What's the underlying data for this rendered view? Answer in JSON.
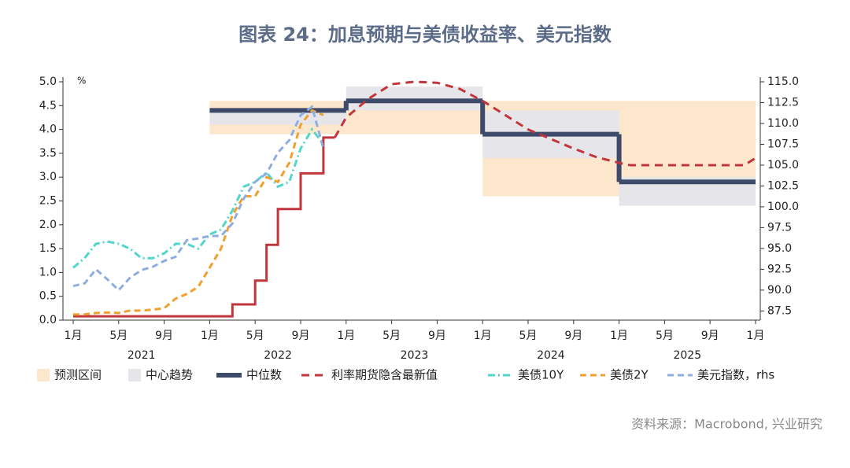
{
  "chart_data": {
    "type": "line",
    "title": "图表 24：加息预期与美债收益率、美元指数",
    "y_unit": "%",
    "source": "资料来源：Macrobond, 兴业研究",
    "ylim": [
      0,
      5
    ],
    "yticks": [
      {
        "value": 0,
        "label": "0.0"
      },
      {
        "value": 0.5,
        "label": "0.5"
      },
      {
        "value": 1,
        "label": "1.0"
      },
      {
        "value": 1.5,
        "label": "1.5"
      },
      {
        "value": 2,
        "label": "2.0"
      },
      {
        "value": 2.5,
        "label": "2.5"
      },
      {
        "value": 3,
        "label": "3.0"
      },
      {
        "value": 3.5,
        "label": "3.5"
      },
      {
        "value": 4,
        "label": "4.0"
      },
      {
        "value": 4.5,
        "label": "4.5"
      },
      {
        "value": 5,
        "label": "5.0"
      }
    ],
    "y2lim": [
      86.4,
      115
    ],
    "y2ticks": [
      87.5,
      {
        "value": 90,
        "label": "90.0"
      },
      92.5,
      {
        "value": 95,
        "label": "95.0"
      },
      97.5,
      {
        "value": 100,
        "label": "100.0"
      },
      102.5,
      {
        "value": 105,
        "label": "105.0"
      },
      107.5,
      {
        "value": 110,
        "label": "110.0"
      },
      112.5,
      {
        "value": 115,
        "label": "115.0"
      }
    ],
    "xlim": [
      "2021-01",
      "2026-01"
    ],
    "xticks": [
      {
        "value": "2021-01",
        "label": "1月"
      },
      {
        "value": "2021-05",
        "label": "5月"
      },
      {
        "value": "2021-09",
        "label": "9月"
      },
      {
        "value": "2022-01",
        "label": "1月"
      },
      {
        "value": "2022-05",
        "label": "5月"
      },
      {
        "value": "2022-09",
        "label": "9月"
      },
      {
        "value": "2023-01",
        "label": "1月"
      },
      {
        "value": "2023-05",
        "label": "5月"
      },
      {
        "value": "2023-09",
        "label": "9月"
      },
      {
        "value": "2024-01",
        "label": "1月"
      },
      {
        "value": "2024-05",
        "label": "5月"
      },
      {
        "value": "2024-09",
        "label": "9月"
      },
      {
        "value": "2025-01",
        "label": "1月"
      },
      {
        "value": "2025-05",
        "label": "5月"
      },
      {
        "value": "2025-09",
        "label": "9月"
      },
      {
        "value": "2026-01",
        "label": "1月"
      }
    ],
    "year_labels": [
      {
        "value": "2021-07",
        "label": "2021"
      },
      {
        "value": "2022-07",
        "label": "2022"
      },
      {
        "value": "2023-07",
        "label": "2023"
      },
      {
        "value": "2024-07",
        "label": "2024"
      },
      {
        "value": "2025-07",
        "label": "2025"
      }
    ],
    "period_starts": [
      "2022-01",
      "2023-01",
      "2024-01",
      "2025-01"
    ],
    "period_end": "2026-01",
    "bands": [
      {
        "name": "预测区间",
        "color": "#fce6cc",
        "low": [
          3.9,
          3.9,
          2.6,
          2.4
        ],
        "high": [
          4.6,
          4.9,
          4.6,
          4.6
        ]
      },
      {
        "name": "中心趋势",
        "color": "#e6e6ea",
        "low": [
          4.1,
          4.4,
          3.4,
          2.4
        ],
        "high": [
          4.4,
          4.9,
          4.4,
          3.0
        ]
      }
    ],
    "median": {
      "name": "中位数",
      "color": "#3e4a6a",
      "values": [
        4.4,
        4.6,
        3.9,
        2.9
      ]
    },
    "policy_rate": {
      "color": "#c0363c",
      "x": [
        "2021-01",
        "2022-03",
        "2022-05",
        "2022-06",
        "2022-07",
        "2022-09",
        "2022-11",
        "2022-12"
      ],
      "values": [
        0.08,
        0.33,
        0.83,
        1.58,
        2.33,
        3.08,
        3.83,
        3.83
      ]
    },
    "futures": {
      "name": "利率期货隐含最新值",
      "color": "#c0363c",
      "x": [
        "2022-12",
        "2023-01",
        "2023-03",
        "2023-05",
        "2023-07",
        "2023-09",
        "2023-11",
        "2024-01",
        "2024-03",
        "2024-05",
        "2024-07",
        "2024-09",
        "2024-11",
        "2025-01",
        "2025-02",
        "2025-06",
        "2025-10",
        "2025-12",
        "2026-01"
      ],
      "values": [
        3.83,
        4.25,
        4.65,
        4.95,
        5.0,
        4.98,
        4.85,
        4.6,
        4.3,
        4.0,
        3.8,
        3.6,
        3.42,
        3.3,
        3.25,
        3.25,
        3.25,
        3.25,
        3.4
      ]
    },
    "x": [
      "2021-01",
      "2021-02",
      "2021-03",
      "2021-04",
      "2021-05",
      "2021-06",
      "2021-07",
      "2021-08",
      "2021-09",
      "2021-10",
      "2021-11",
      "2021-12",
      "2022-01",
      "2022-02",
      "2022-03",
      "2022-04",
      "2022-05",
      "2022-06",
      "2022-07",
      "2022-08",
      "2022-09",
      "2022-10",
      "2022-11"
    ],
    "series": [
      {
        "name": "美债10Y",
        "color": "#52d6cc",
        "dash": "dashdot",
        "values": [
          1.1,
          1.3,
          1.6,
          1.65,
          1.6,
          1.5,
          1.3,
          1.3,
          1.4,
          1.6,
          1.6,
          1.5,
          1.8,
          1.9,
          2.3,
          2.8,
          2.9,
          3.1,
          2.8,
          2.9,
          3.6,
          4.0,
          3.7
        ]
      },
      {
        "name": "美债2Y",
        "color": "#f0a030",
        "dash": "dash",
        "values": [
          0.12,
          0.12,
          0.15,
          0.16,
          0.15,
          0.2,
          0.2,
          0.22,
          0.25,
          0.45,
          0.55,
          0.7,
          1.1,
          1.5,
          2.2,
          2.6,
          2.6,
          3.0,
          2.9,
          3.3,
          4.1,
          4.4,
          4.3
        ]
      },
      {
        "name": "美元指数，rhs",
        "color": "#8eaee0",
        "dash": "dash",
        "axis": "y2",
        "values": [
          90.5,
          90.8,
          92.5,
          91.3,
          90.0,
          91.5,
          92.4,
          92.8,
          93.5,
          94.0,
          96.0,
          96.2,
          96.5,
          96.5,
          98.0,
          101.0,
          103.0,
          104.0,
          106.5,
          108.0,
          111.0,
          112.0,
          107.0
        ]
      }
    ]
  }
}
